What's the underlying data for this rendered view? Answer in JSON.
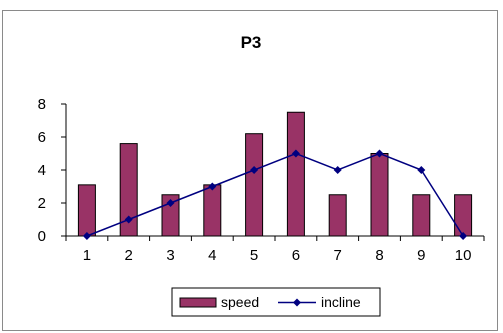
{
  "chart_data": {
    "type": "bar",
    "title": "P3",
    "categories": [
      "1",
      "2",
      "3",
      "4",
      "5",
      "6",
      "7",
      "8",
      "9",
      "10"
    ],
    "series": [
      {
        "name": "speed",
        "kind": "bar",
        "color": "#993366",
        "values": [
          3.1,
          5.6,
          2.5,
          3.1,
          6.2,
          7.5,
          2.5,
          5.0,
          2.5,
          2.5
        ]
      },
      {
        "name": "incline",
        "kind": "line",
        "color": "#000080",
        "values": [
          0,
          1,
          2,
          3,
          4,
          5,
          4,
          5,
          4,
          0
        ]
      }
    ],
    "ylim": [
      0,
      8
    ],
    "yticks": [
      "0",
      "2",
      "4",
      "6",
      "8"
    ],
    "xlabel": "",
    "ylabel": "",
    "grid": false,
    "legend_position": "bottom"
  }
}
